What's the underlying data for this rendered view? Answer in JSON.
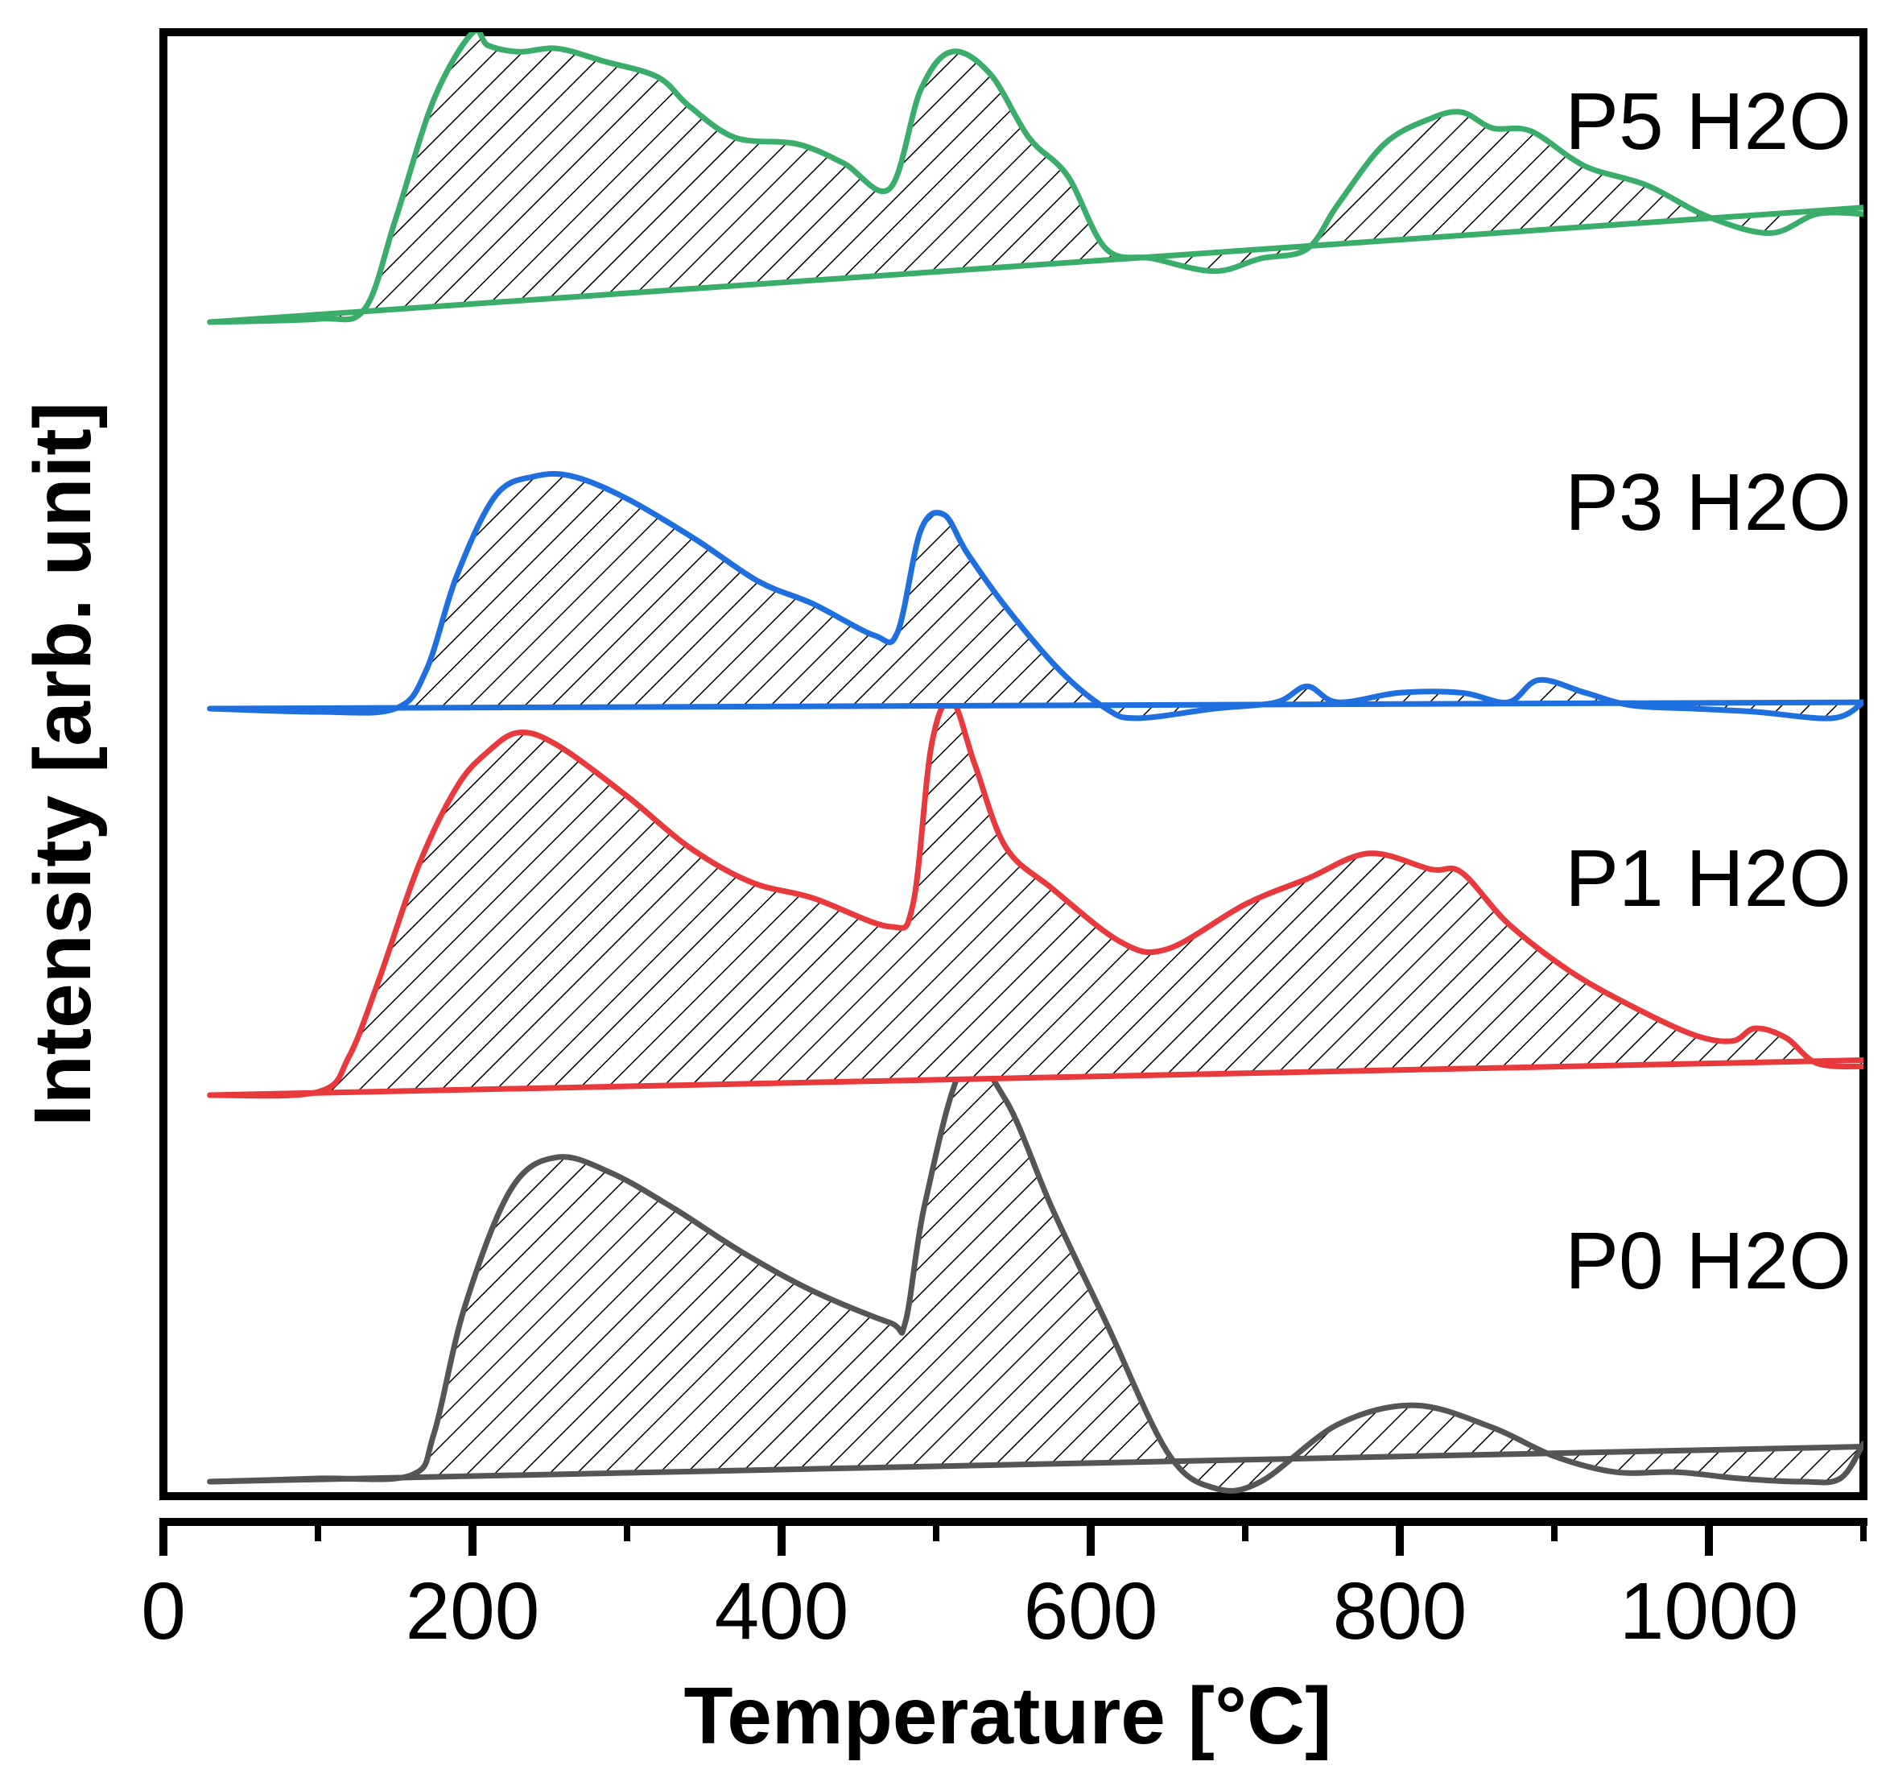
{
  "chart_data": {
    "type": "line",
    "title": "",
    "xlabel": "Temperature [°C]",
    "ylabel": "Intensity [arb. unit]",
    "xlim": [
      0,
      1100
    ],
    "ylim": [
      0,
      4
    ],
    "xticks": [
      0,
      200,
      400,
      600,
      800,
      1000
    ],
    "xticks_minor": [
      100,
      300,
      500,
      700,
      900,
      1100
    ],
    "yticks_shown": false,
    "grid": false,
    "hatched_area": true,
    "series": [
      {
        "name": "P0 H2O",
        "label": "P0 H2O",
        "color": "#555555",
        "offset": 0,
        "baseline": [
          [
            30,
            0.0
          ],
          [
            1100,
            0.11
          ]
        ],
        "x": [
          30,
          100,
          160,
          175,
          195,
          225,
          255,
          290,
          330,
          375,
          420,
          470,
          480,
          493,
          518,
          545,
          575,
          610,
          650,
          680,
          710,
          760,
          810,
          860,
          900,
          940,
          980,
          1020,
          1060,
          1085,
          1100
        ],
        "y": [
          0.0,
          0.01,
          0.02,
          0.15,
          0.55,
          0.92,
          1.02,
          0.97,
          0.86,
          0.72,
          0.6,
          0.5,
          0.5,
          0.88,
          1.31,
          1.2,
          0.86,
          0.5,
          0.09,
          -0.02,
          0.0,
          0.18,
          0.24,
          0.17,
          0.08,
          0.03,
          0.03,
          0.01,
          0.0,
          0.01,
          0.12
        ]
      },
      {
        "name": "P1 H2O",
        "label": "P1 H2O",
        "color": "#e8393d",
        "offset": 1,
        "baseline": [
          [
            30,
            0.0
          ],
          [
            1100,
            0.11
          ]
        ],
        "x": [
          30,
          100,
          120,
          140,
          165,
          190,
          210,
          230,
          255,
          300,
          340,
          380,
          420,
          470,
          485,
          497,
          510,
          525,
          545,
          575,
          620,
          650,
          700,
          740,
          780,
          820,
          840,
          870,
          910,
          950,
          990,
          1015,
          1030,
          1050,
          1070,
          1100
        ],
        "y": [
          0.0,
          0.01,
          0.12,
          0.37,
          0.72,
          0.97,
          1.08,
          1.14,
          1.1,
          0.94,
          0.78,
          0.67,
          0.62,
          0.53,
          0.6,
          1.1,
          1.24,
          1.04,
          0.78,
          0.65,
          0.48,
          0.46,
          0.6,
          0.68,
          0.76,
          0.71,
          0.7,
          0.54,
          0.39,
          0.28,
          0.19,
          0.17,
          0.21,
          0.18,
          0.1,
          0.09
        ]
      },
      {
        "name": "P3 H2O",
        "label": "P3 H2O",
        "color": "#1f6fdf",
        "offset": 2,
        "baseline": [
          [
            30,
            0.0
          ],
          [
            1100,
            0.02
          ]
        ],
        "x": [
          30,
          100,
          150,
          170,
          190,
          215,
          240,
          265,
          300,
          345,
          385,
          420,
          460,
          475,
          490,
          505,
          520,
          545,
          580,
          610,
          630,
          680,
          720,
          740,
          760,
          800,
          840,
          870,
          890,
          920,
          950,
          990,
          1030,
          1080,
          1100
        ],
        "y": [
          0.0,
          -0.01,
          0.0,
          0.12,
          0.42,
          0.67,
          0.73,
          0.73,
          0.66,
          0.53,
          0.4,
          0.33,
          0.23,
          0.24,
          0.56,
          0.61,
          0.49,
          0.32,
          0.12,
          0.0,
          -0.03,
          0.0,
          0.02,
          0.07,
          0.02,
          0.05,
          0.05,
          0.02,
          0.09,
          0.05,
          0.01,
          0.0,
          -0.01,
          -0.03,
          0.02
        ]
      },
      {
        "name": "P5 H2O",
        "label": "P5 H2O",
        "color": "#3aad6a",
        "offset": 3,
        "baseline": [
          [
            30,
            0.0
          ],
          [
            1100,
            0.36
          ]
        ],
        "x": [
          30,
          100,
          130,
          150,
          175,
          200,
          210,
          230,
          255,
          285,
          320,
          340,
          370,
          410,
          440,
          470,
          490,
          510,
          535,
          560,
          585,
          610,
          640,
          680,
          710,
          740,
          760,
          790,
          820,
          840,
          860,
          885,
          920,
          960,
          1000,
          1040,
          1070,
          1100
        ],
        "y": [
          0.0,
          0.01,
          0.04,
          0.32,
          0.7,
          0.91,
          0.87,
          0.85,
          0.86,
          0.82,
          0.77,
          0.68,
          0.58,
          0.56,
          0.5,
          0.42,
          0.73,
          0.85,
          0.78,
          0.58,
          0.46,
          0.23,
          0.2,
          0.16,
          0.2,
          0.23,
          0.37,
          0.56,
          0.64,
          0.66,
          0.61,
          0.6,
          0.49,
          0.43,
          0.33,
          0.28,
          0.34,
          0.34
        ]
      }
    ]
  }
}
